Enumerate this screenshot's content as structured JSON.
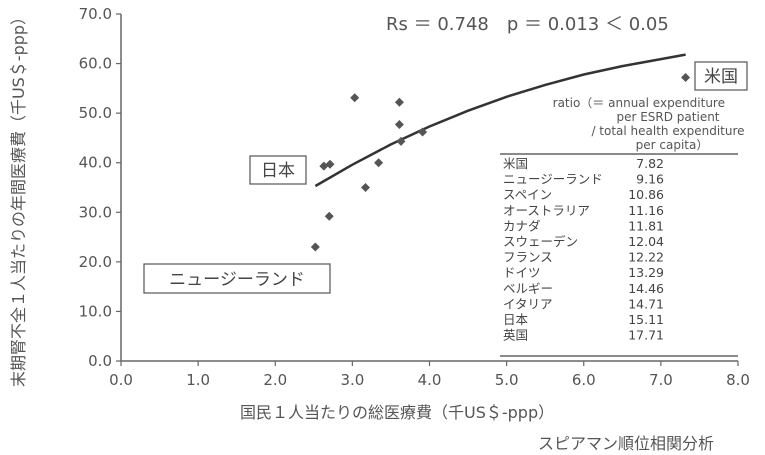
{
  "chart_data": {
    "type": "scatter",
    "xlabel": "国民１人当たりの総医療費（千US＄-ppp）",
    "ylabel": "末期腎不全１人当たりの年間医療費（千US＄-ppp）",
    "xlim": [
      0,
      8
    ],
    "ylim": [
      0,
      70
    ],
    "x_ticks": [
      "0.0",
      "1.0",
      "2.0",
      "3.0",
      "4.0",
      "5.0",
      "6.0",
      "7.0",
      "8.0"
    ],
    "y_ticks": [
      "0.0",
      "10.0",
      "20.0",
      "30.0",
      "40.0",
      "50.0",
      "60.0",
      "70.0"
    ],
    "grid": false,
    "points": [
      {
        "x": 2.52,
        "y": 23.0
      },
      {
        "x": 2.63,
        "y": 39.3
      },
      {
        "x": 2.7,
        "y": 29.2
      },
      {
        "x": 2.71,
        "y": 39.7
      },
      {
        "x": 3.03,
        "y": 53.1
      },
      {
        "x": 3.17,
        "y": 35.0
      },
      {
        "x": 3.34,
        "y": 40.0
      },
      {
        "x": 3.61,
        "y": 52.2
      },
      {
        "x": 3.61,
        "y": 47.7
      },
      {
        "x": 3.63,
        "y": 44.3
      },
      {
        "x": 3.91,
        "y": 46.2
      },
      {
        "x": 7.32,
        "y": 57.2
      }
    ],
    "trend": {
      "x": [
        2.52,
        3.0,
        3.5,
        4.0,
        4.5,
        5.0,
        5.5,
        6.0,
        6.5,
        7.0,
        7.32
      ],
      "y": [
        35.3,
        39.6,
        43.7,
        47.3,
        50.5,
        53.3,
        55.7,
        57.8,
        59.5,
        60.9,
        61.8
      ]
    },
    "annotations": {
      "stats": "Rs ＝ 0.748　p ＝ 0.013 ＜ 0.05",
      "label_usa": "米国",
      "label_japan": "日本",
      "label_nz": "ニュージーランド"
    },
    "table": {
      "header": [
        "ratio（＝ annual expenditure",
        "per ESRD patient",
        "/ total health expenditure",
        "per capita）"
      ],
      "rows": [
        {
          "country": "米国",
          "value": "7.82"
        },
        {
          "country": "ニュージーランド",
          "value": "9.16"
        },
        {
          "country": "スペイン",
          "value": "10.86"
        },
        {
          "country": "オーストラリア",
          "value": "11.16"
        },
        {
          "country": "カナダ",
          "value": "11.81"
        },
        {
          "country": "スウェーデン",
          "value": "12.04"
        },
        {
          "country": "フランス",
          "value": "12.22"
        },
        {
          "country": "ドイツ",
          "value": "13.29"
        },
        {
          "country": "ベルギー",
          "value": "14.46"
        },
        {
          "country": "イタリア",
          "value": "14.71"
        },
        {
          "country": "日本",
          "value": "15.11"
        },
        {
          "country": "英国",
          "value": "17.71"
        }
      ]
    },
    "footer": "スピアマン順位相関分析"
  }
}
